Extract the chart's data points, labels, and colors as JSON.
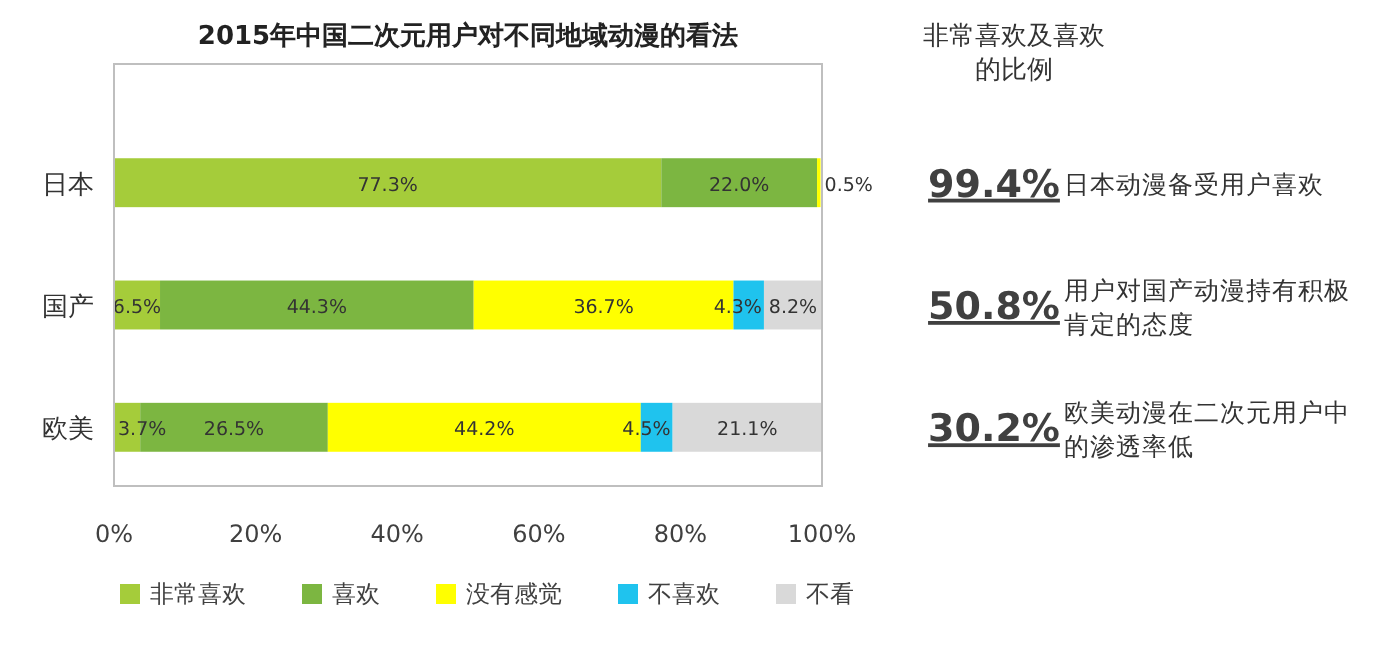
{
  "chart_data": {
    "type": "bar",
    "orientation": "horizontal",
    "stacked": true,
    "title": "2015年中国二次元用户对不同地域动漫的看法",
    "categories": [
      "日本",
      "国产",
      "欧美"
    ],
    "series": [
      {
        "name": "非常喜欢",
        "color": "#a5cc3a",
        "values": [
          77.3,
          6.5,
          3.7
        ],
        "value_labels": [
          "77.3%",
          "6.5%",
          "3.7%"
        ]
      },
      {
        "name": "喜欢",
        "color": "#7cb641",
        "values": [
          22.0,
          44.3,
          26.5
        ],
        "value_labels": [
          "22.0%",
          "44.3%",
          "26.5%"
        ]
      },
      {
        "name": "没有感觉",
        "color": "#ffff00",
        "values": [
          0.5,
          36.7,
          44.2
        ],
        "value_labels": [
          "0.5%",
          "36.7%",
          "44.2%"
        ]
      },
      {
        "name": "不喜欢",
        "color": "#1fc3ee",
        "values": [
          null,
          4.3,
          4.5
        ],
        "value_labels": [
          null,
          "4.3%",
          "4.5%"
        ]
      },
      {
        "name": "不看",
        "color": "#d9d9d9",
        "values": [
          null,
          8.2,
          21.1
        ],
        "value_labels": [
          null,
          "8.2%",
          "21.1%"
        ]
      }
    ],
    "xlim": [
      0,
      100
    ],
    "xticks": [
      {
        "value": 0,
        "label": "0%"
      },
      {
        "value": 20,
        "label": "20%"
      },
      {
        "value": 40,
        "label": "40%"
      },
      {
        "value": 60,
        "label": "60%"
      },
      {
        "value": 80,
        "label": "80%"
      },
      {
        "value": 100,
        "label": "100%"
      }
    ],
    "grid": false,
    "legend": "bottom",
    "annotations": [
      "非常喜欢及喜欢的比例",
      "99.4%",
      "日本动漫备受用户喜欢",
      "50.8%",
      "用户对国产动漫持有积极肯定的态度",
      "30.2%",
      "欧美动漫在二次元用户中的渗透率低"
    ]
  }
}
